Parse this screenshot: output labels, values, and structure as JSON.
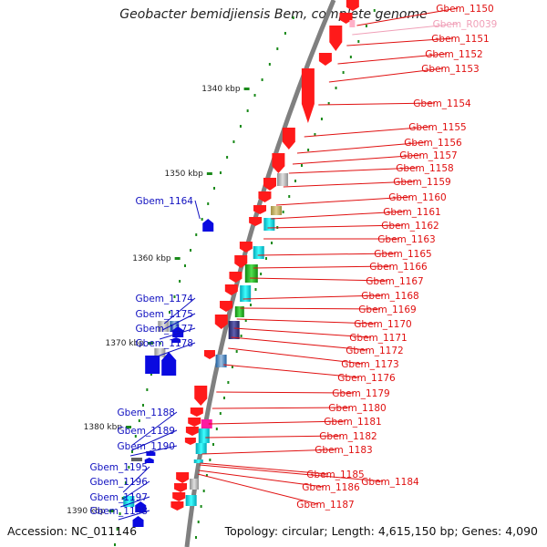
{
  "title": "Geobacter bemidjiensis Bem, complete genome",
  "accession": "Accession: NC_011146",
  "topology": "Topology: circular; Length: 4,615,150 bp; Genes: 4,090",
  "ticks": [
    "1340 kbp",
    "1350 kbp",
    "1360 kbp",
    "1370 kbp",
    "1380 kbp",
    "1390 kbp"
  ],
  "right_labels": [
    {
      "text": "Gbem_1150",
      "color": "#e01010"
    },
    {
      "text": "Gbem_R0039",
      "color": "#f0a0b8"
    },
    {
      "text": "Gbem_1151",
      "color": "#e01010"
    },
    {
      "text": "Gbem_1152",
      "color": "#e01010"
    },
    {
      "text": "Gbem_1153",
      "color": "#e01010"
    },
    {
      "text": "Gbem_1154",
      "color": "#e01010"
    },
    {
      "text": "Gbem_1155",
      "color": "#e01010"
    },
    {
      "text": "Gbem_1156",
      "color": "#e01010"
    },
    {
      "text": "Gbem_1157",
      "color": "#e01010"
    },
    {
      "text": "Gbem_1158",
      "color": "#e01010"
    },
    {
      "text": "Gbem_1159",
      "color": "#e01010"
    },
    {
      "text": "Gbem_1160",
      "color": "#e01010"
    },
    {
      "text": "Gbem_1161",
      "color": "#e01010"
    },
    {
      "text": "Gbem_1162",
      "color": "#e01010"
    },
    {
      "text": "Gbem_1163",
      "color": "#e01010"
    },
    {
      "text": "Gbem_1165",
      "color": "#e01010"
    },
    {
      "text": "Gbem_1166",
      "color": "#e01010"
    },
    {
      "text": "Gbem_1167",
      "color": "#e01010"
    },
    {
      "text": "Gbem_1168",
      "color": "#e01010"
    },
    {
      "text": "Gbem_1169",
      "color": "#e01010"
    },
    {
      "text": "Gbem_1170",
      "color": "#e01010"
    },
    {
      "text": "Gbem_1171",
      "color": "#e01010"
    },
    {
      "text": "Gbem_1172",
      "color": "#e01010"
    },
    {
      "text": "Gbem_1173",
      "color": "#e01010"
    },
    {
      "text": "Gbem_1176",
      "color": "#e01010"
    },
    {
      "text": "Gbem_1179",
      "color": "#e01010"
    },
    {
      "text": "Gbem_1180",
      "color": "#e01010"
    },
    {
      "text": "Gbem_1181",
      "color": "#e01010"
    },
    {
      "text": "Gbem_1182",
      "color": "#e01010"
    },
    {
      "text": "Gbem_1183",
      "color": "#e01010"
    },
    {
      "text": "Gbem_1185",
      "color": "#e01010"
    },
    {
      "text": "Gbem_1184",
      "color": "#e01010"
    },
    {
      "text": "Gbem_1186",
      "color": "#e01010"
    },
    {
      "text": "Gbem_1187",
      "color": "#e01010"
    }
  ],
  "left_labels": [
    {
      "text": "Gbem_1164",
      "color": "#1010c0"
    },
    {
      "text": "Gbem_1174",
      "color": "#1010c0"
    },
    {
      "text": "Gbem_1175",
      "color": "#1010c0"
    },
    {
      "text": "Gbem_1177",
      "color": "#1010c0"
    },
    {
      "text": "Gbem_1178",
      "color": "#1010c0"
    },
    {
      "text": "Gbem_1188",
      "color": "#1010c0"
    },
    {
      "text": "Gbem_1189",
      "color": "#1010c0"
    },
    {
      "text": "Gbem_1190",
      "color": "#1010c0"
    },
    {
      "text": "Gbem_1195",
      "color": "#1010c0"
    },
    {
      "text": "Gbem_1196",
      "color": "#1010c0"
    },
    {
      "text": "Gbem_1197",
      "color": "#1010c0"
    },
    {
      "text": "Gbem_1198",
      "color": "#1010c0"
    }
  ],
  "colors": {
    "forward_gene": "#ff1a1a",
    "reverse_gene": "#0a0ae0",
    "backbone": "#7a7a7a",
    "tick": "#1a8a1a",
    "cyan_gene": "#18d8e0",
    "green_gene": "#30c030",
    "purple_gene": "#404090",
    "gray_gene": "#b0b0b0",
    "khaki_gene": "#c0b060",
    "magenta_gene": "#ff1aa0"
  }
}
